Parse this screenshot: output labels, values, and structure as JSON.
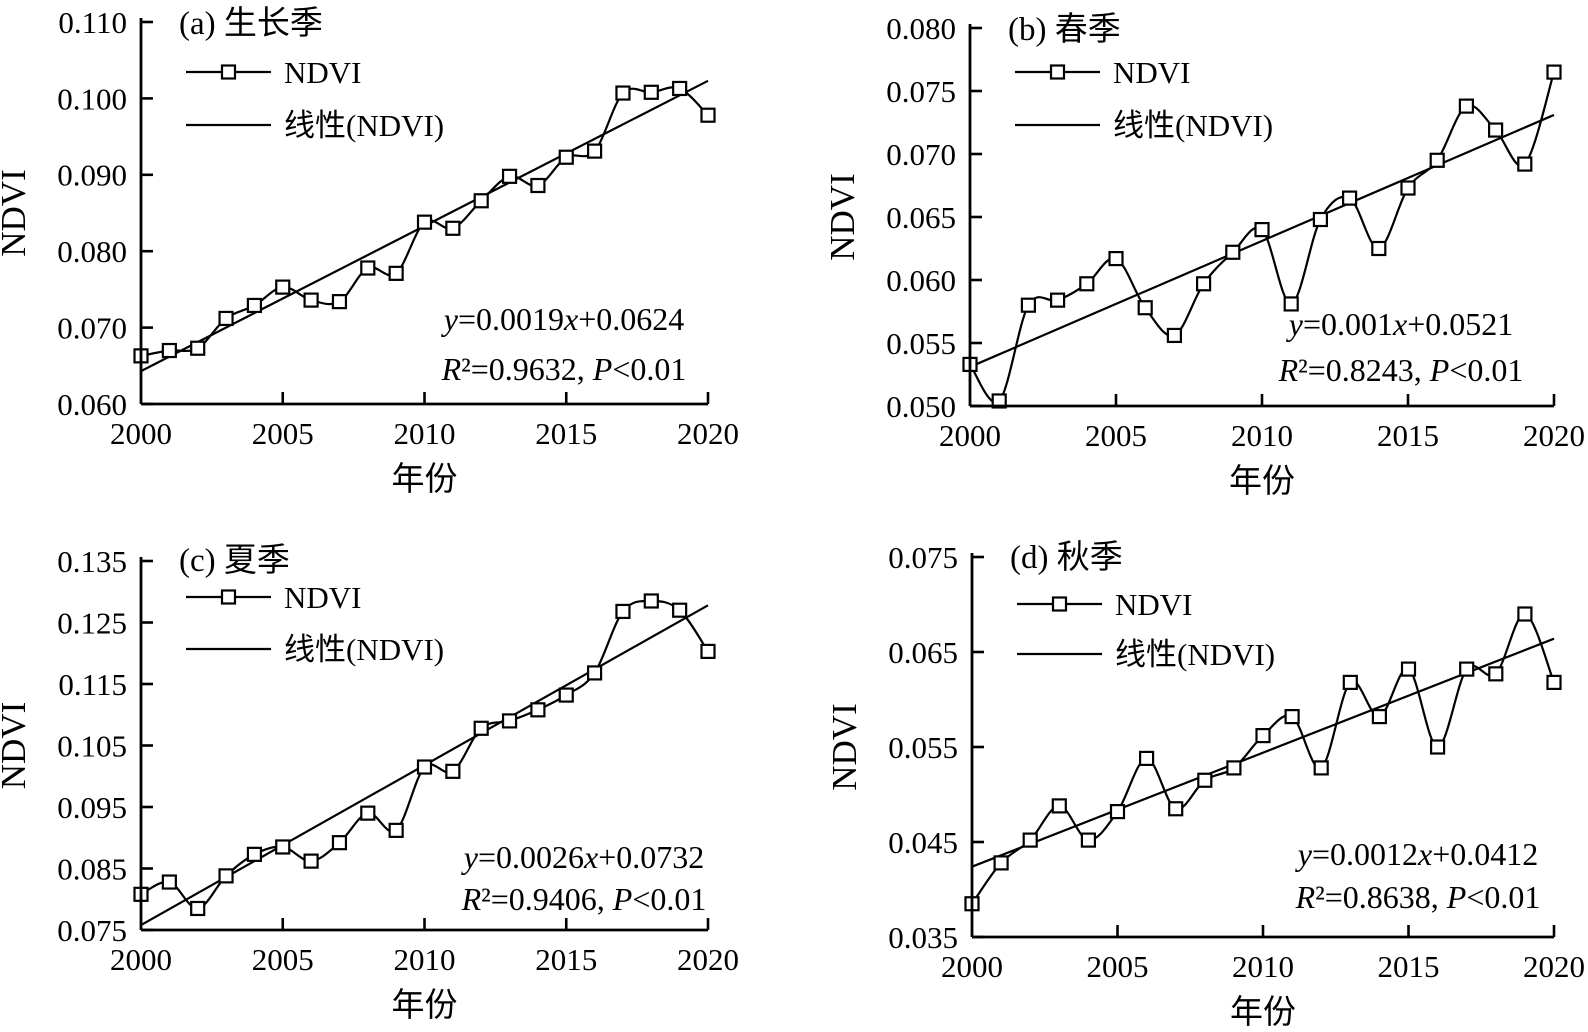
{
  "figure": {
    "description": "Four-panel seasonal NDVI interannual trend figure",
    "panel_count": 4,
    "line_color": "#000000",
    "background": "#ffffff"
  },
  "chart_data": [
    {
      "id": "a",
      "type": "line",
      "title": "(a) 生长季",
      "xlabel": "年份",
      "ylabel": "NDVI",
      "legend": [
        "NDVI",
        "线性(NDVI)"
      ],
      "legend_position": "top-left",
      "grid": false,
      "years": [
        2000,
        2001,
        2002,
        2003,
        2004,
        2005,
        2006,
        2007,
        2008,
        2009,
        2010,
        2011,
        2012,
        2013,
        2014,
        2015,
        2016,
        2017,
        2018,
        2019,
        2020
      ],
      "series": [
        {
          "name": "NDVI",
          "values": [
            0.0663,
            0.067,
            0.0673,
            0.0712,
            0.0729,
            0.0753,
            0.0736,
            0.0734,
            0.0778,
            0.0771,
            0.0838,
            0.083,
            0.0866,
            0.0898,
            0.0886,
            0.0923,
            0.0931,
            0.1007,
            0.1008,
            0.1013,
            0.0978
          ]
        }
      ],
      "trend": {
        "name": "线性(NDVI)",
        "slope": 0.0019,
        "intercept": 0.0624
      },
      "equation": "y=0.0019x+0.0624",
      "stats": "R²=0.9632, P<0.01",
      "ylim": [
        0.06,
        0.11
      ],
      "yticks": [
        "0.060",
        "0.070",
        "0.080",
        "0.090",
        "0.100",
        "0.110"
      ],
      "xlim": [
        2000,
        2020
      ],
      "xticks": [
        "2000",
        "2005",
        "2010",
        "2015",
        "2020"
      ]
    },
    {
      "id": "b",
      "type": "line",
      "title": "(b) 春季",
      "xlabel": "年份",
      "ylabel": "NDVI",
      "legend": [
        "NDVI",
        "线性(NDVI)"
      ],
      "legend_position": "top-left",
      "grid": false,
      "years": [
        2000,
        2001,
        2002,
        2003,
        2004,
        2005,
        2006,
        2007,
        2008,
        2009,
        2010,
        2011,
        2012,
        2013,
        2014,
        2015,
        2016,
        2017,
        2018,
        2019,
        2020
      ],
      "series": [
        {
          "name": "NDVI",
          "values": [
            0.0533,
            0.0504,
            0.058,
            0.0584,
            0.0597,
            0.0617,
            0.0578,
            0.0556,
            0.0597,
            0.0622,
            0.064,
            0.0581,
            0.0648,
            0.0665,
            0.0625,
            0.0673,
            0.0695,
            0.0738,
            0.0719,
            0.0692,
            0.0765
          ]
        }
      ],
      "trend": {
        "name": "线性(NDVI)",
        "slope": 0.001,
        "intercept": 0.0521
      },
      "equation": "y=0.001x+0.0521",
      "stats": "R²=0.8243, P<0.01",
      "ylim": [
        0.05,
        0.08
      ],
      "yticks": [
        "0.050",
        "0.055",
        "0.060",
        "0.065",
        "0.070",
        "0.075",
        "0.080"
      ],
      "xlim": [
        2000,
        2020
      ],
      "xticks": [
        "2000",
        "2005",
        "2010",
        "2015",
        "2020"
      ]
    },
    {
      "id": "c",
      "type": "line",
      "title": "(c) 夏季",
      "xlabel": "年份",
      "ylabel": "NDVI",
      "legend": [
        "NDVI",
        "线性(NDVI)"
      ],
      "legend_position": "top-left",
      "grid": false,
      "years": [
        2000,
        2001,
        2002,
        2003,
        2004,
        2005,
        2006,
        2007,
        2008,
        2009,
        2010,
        2011,
        2012,
        2013,
        2014,
        2015,
        2016,
        2017,
        2018,
        2019,
        2020
      ],
      "series": [
        {
          "name": "NDVI",
          "values": [
            0.0808,
            0.0828,
            0.0785,
            0.0838,
            0.0873,
            0.0885,
            0.0862,
            0.0892,
            0.094,
            0.0912,
            0.1015,
            0.1008,
            0.1078,
            0.109,
            0.1108,
            0.1132,
            0.1168,
            0.1268,
            0.1285,
            0.127,
            0.1203
          ]
        }
      ],
      "trend": {
        "name": "线性(NDVI)",
        "slope": 0.0026,
        "intercept": 0.0732
      },
      "equation": "y=0.0026x+0.0732",
      "stats": "R²=0.9406, P<0.01",
      "ylim": [
        0.075,
        0.135
      ],
      "yticks": [
        "0.075",
        "0.085",
        "0.095",
        "0.105",
        "0.115",
        "0.125",
        "0.135"
      ],
      "xlim": [
        2000,
        2020
      ],
      "xticks": [
        "2000",
        "2005",
        "2010",
        "2015",
        "2020"
      ]
    },
    {
      "id": "d",
      "type": "line",
      "title": "(d) 秋季",
      "xlabel": "年份",
      "ylabel": "NDVI",
      "legend": [
        "NDVI",
        "线性(NDVI)"
      ],
      "legend_position": "top-left",
      "grid": false,
      "years": [
        2000,
        2001,
        2002,
        2003,
        2004,
        2005,
        2006,
        2007,
        2008,
        2009,
        2010,
        2011,
        2012,
        2013,
        2014,
        2015,
        2016,
        2017,
        2018,
        2019,
        2020
      ],
      "series": [
        {
          "name": "NDVI",
          "values": [
            0.0385,
            0.0428,
            0.0452,
            0.0488,
            0.0452,
            0.0482,
            0.0538,
            0.0485,
            0.0515,
            0.0528,
            0.0562,
            0.0582,
            0.0528,
            0.0618,
            0.0582,
            0.0632,
            0.055,
            0.0632,
            0.0627,
            0.069,
            0.0618
          ]
        }
      ],
      "trend": {
        "name": "线性(NDVI)",
        "slope": 0.0012,
        "intercept": 0.0412
      },
      "equation": "y=0.0012x+0.0412",
      "stats": "R²=0.8638, P<0.01",
      "ylim": [
        0.035,
        0.075
      ],
      "yticks": [
        "0.035",
        "0.045",
        "0.055",
        "0.065",
        "0.075"
      ],
      "xlim": [
        2000,
        2020
      ],
      "xticks": [
        "2000",
        "2005",
        "2010",
        "2015",
        "2020"
      ]
    }
  ]
}
